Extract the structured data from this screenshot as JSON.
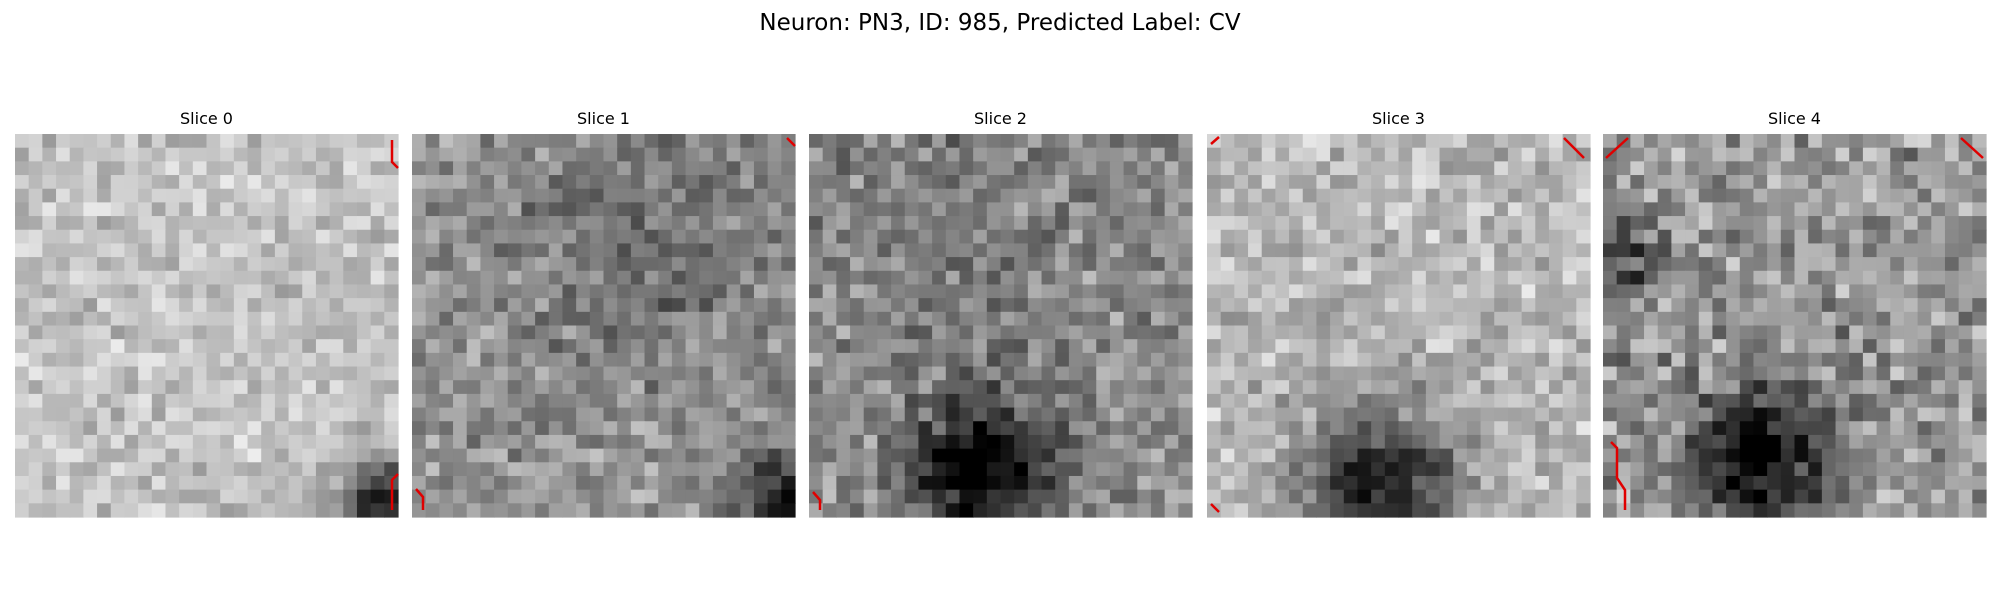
{
  "title": "Neuron: PN3, ID: 985, Predicted Label: CV",
  "panels": [
    {
      "label": "Slice 0"
    },
    {
      "label": "Slice 1"
    },
    {
      "label": "Slice 2"
    },
    {
      "label": "Slice 3"
    },
    {
      "label": "Slice 4"
    }
  ]
}
